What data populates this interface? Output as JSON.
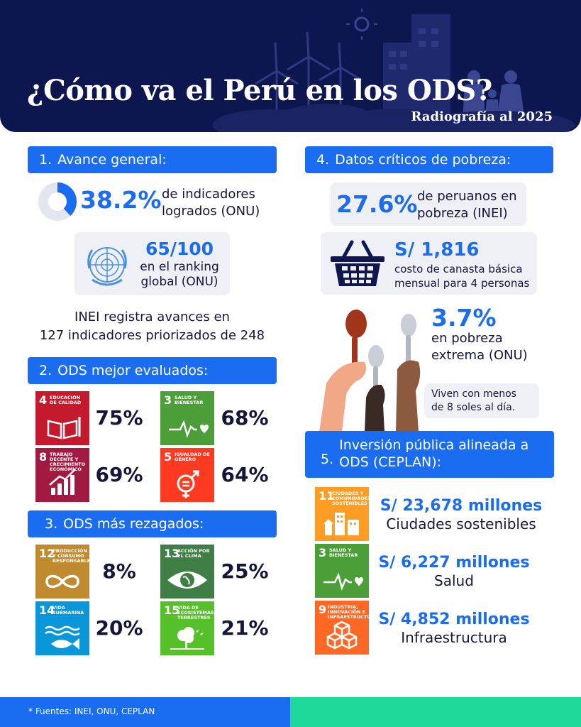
{
  "header": {
    "title": "¿Cómo va el Perú en los ODS?",
    "subtitle": "Radiografía al 2025"
  },
  "colors": {
    "navy": "#0e1650",
    "blue": "#1a6cf0",
    "green": "#1fd99a",
    "gray": "#eef0f5"
  },
  "section1": {
    "num": "1.",
    "title": "Avance general:",
    "achieved_pct": "38.2%",
    "achieved_fraction": 0.382,
    "achieved_text_1": "de indicadores",
    "achieved_text_2": "logrados (ONU)",
    "ranking_value": "65/100",
    "ranking_text_1": "en el ranking",
    "ranking_text_2": "global (ONU)",
    "inei_text_1": "INEI registra avances en",
    "inei_text_2": "127 indicadores priorizados de 248"
  },
  "section2": {
    "num": "2.",
    "title": "ODS mejor evaluados:",
    "items": [
      {
        "num": "4",
        "label": "Educación de calidad",
        "color": "#c5192d",
        "icon": "book-icon",
        "pct": "75%"
      },
      {
        "num": "3",
        "label": "Salud y bienestar",
        "color": "#4c9f38",
        "icon": "heartbeat-icon",
        "pct": "68%"
      },
      {
        "num": "8",
        "label": "Trabajo decente y crecimiento económico",
        "color": "#a21942",
        "icon": "growth-chart-icon",
        "pct": "69%"
      },
      {
        "num": "5",
        "label": "Igualdad de género",
        "color": "#ff3a21",
        "icon": "gender-equality-icon",
        "pct": "64%"
      }
    ]
  },
  "section3": {
    "num": "3.",
    "title": "ODS más rezagados:",
    "items": [
      {
        "num": "12",
        "label": "Producción y consumo responsables",
        "color": "#bf8b2e",
        "icon": "infinity-icon",
        "pct": "8%"
      },
      {
        "num": "13",
        "label": "Acción por el clima",
        "color": "#3f7e44",
        "icon": "eye-globe-icon",
        "pct": "25%"
      },
      {
        "num": "14",
        "label": "Vida submarina",
        "color": "#0a97d9",
        "icon": "fish-icon",
        "pct": "20%"
      },
      {
        "num": "15",
        "label": "Vida de ecosistemas terrestres",
        "color": "#56c02b",
        "icon": "tree-icon",
        "pct": "21%"
      }
    ]
  },
  "section4": {
    "num": "4.",
    "title": "Datos críticos de pobreza:",
    "poverty_pct": "27.6%",
    "poverty_text_1": "de peruanos en",
    "poverty_text_2": "pobreza (INEI)",
    "basket_value": "S/ 1,816",
    "basket_text_1": "costo de canasta básica",
    "basket_text_2": "mensual para 4 personas",
    "extreme_pct": "3.7%",
    "extreme_text_1": "en pobreza",
    "extreme_text_2": "extrema (ONU)",
    "live_text_1": "Viven con menos",
    "live_text_2": "de 8 soles al día."
  },
  "section5": {
    "num": "5.",
    "title_1": "Inversión pública alineada a",
    "title_2": "ODS (CEPLAN):",
    "items": [
      {
        "num": "11",
        "label": "Ciudades y comunidades sostenibles",
        "color": "#fd9d24",
        "icon": "city-icon",
        "amount": "S/ 23,678 millones",
        "name": "Ciudades sostenibles"
      },
      {
        "num": "3",
        "label": "Salud y bienestar",
        "color": "#4c9f38",
        "icon": "heartbeat-icon",
        "amount": "S/ 6,227 millones",
        "name": "Salud"
      },
      {
        "num": "9",
        "label": "Industria, innovación e infraestructura",
        "color": "#fd6925",
        "icon": "cubes-icon",
        "amount": "S/ 4,852 millones",
        "name": "Infraestructura"
      }
    ]
  },
  "footer": {
    "sources": "* Fuentes: INEI, ONU, CEPLAN"
  }
}
